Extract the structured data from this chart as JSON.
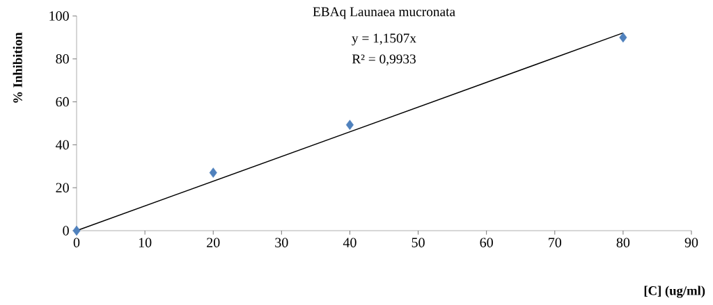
{
  "chart_data": {
    "type": "scatter",
    "title": "EBAq Launaea mucronata",
    "annotations": [
      "y = 1,1507x",
      "R² = 0,9933"
    ],
    "xlabel": "[C] (ug/ml)",
    "ylabel": "% Inhibition",
    "series": [
      {
        "color": "#4f81bd",
        "x": [
          0,
          20,
          40,
          80
        ],
        "values": [
          0,
          27,
          49.3,
          90
        ]
      },
      {
        "type": "line",
        "marker": "none",
        "color": "#000000",
        "x": [
          0,
          80
        ],
        "values": [
          0,
          92.1
        ]
      }
    ],
    "marker": "diamond",
    "grid": false,
    "xlim": [
      0,
      90
    ],
    "xticks": [
      0,
      10,
      20,
      30,
      40,
      50,
      60,
      70,
      80,
      90
    ],
    "ylim": [
      0,
      100
    ],
    "yticks": [
      0,
      20,
      40,
      60,
      80,
      100
    ]
  }
}
